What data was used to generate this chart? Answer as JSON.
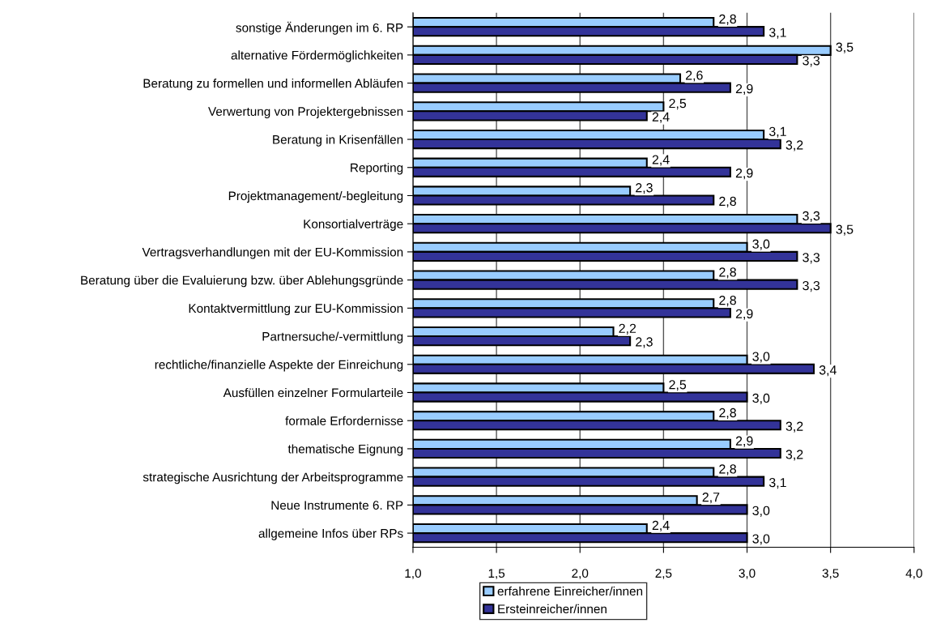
{
  "chart_data": {
    "type": "bar",
    "orientation": "horizontal",
    "categories": [
      "sonstige Änderungen im 6. RP",
      "alternative Fördermöglichkeiten",
      "Beratung zu formellen und informellen Abläufen",
      "Verwertung von Projektergebnissen",
      "Beratung in Krisenfällen",
      "Reporting",
      "Projektmanagement/-begleitung",
      "Konsortialverträge",
      "Vertragsverhandlungen mit der EU-Kommission",
      "Beratung über die Evaluierung bzw. über Ablehungsgründe",
      "Kontaktvermittlung zur EU-Kommission",
      "Partnersuche/-vermittlung",
      "rechtliche/finanzielle Aspekte der Einreichung",
      "Ausfüllen einzelner Formularteile",
      "formale Erfordernisse",
      "thematische Eignung",
      "strategische Ausrichtung der Arbeitsprogramme",
      "Neue Instrumente 6. RP",
      "allgemeine Infos über RPs"
    ],
    "series": [
      {
        "name": "erfahrene Einreicher/innen",
        "color": "#99ccff",
        "values": [
          2.8,
          3.5,
          2.6,
          2.5,
          3.1,
          2.4,
          2.3,
          3.3,
          3.0,
          2.8,
          2.8,
          2.2,
          3.0,
          2.5,
          2.8,
          2.9,
          2.8,
          2.7,
          2.4
        ],
        "value_labels": [
          "2,8",
          "3,5",
          "2,6",
          "2,5",
          "3,1",
          "2,4",
          "2,3",
          "3,3",
          "3,0",
          "2,8",
          "2,8",
          "2,2",
          "3,0",
          "2,5",
          "2,8",
          "2,9",
          "2,8",
          "2,7",
          "2,4"
        ]
      },
      {
        "name": "Ersteinreicher/innen",
        "color": "#333399",
        "values": [
          3.1,
          3.3,
          2.9,
          2.4,
          3.2,
          2.9,
          2.8,
          3.5,
          3.3,
          3.3,
          2.9,
          2.3,
          3.4,
          3.0,
          3.2,
          3.2,
          3.1,
          3.0,
          3.0
        ],
        "value_labels": [
          "3,1",
          "3,3",
          "2,9",
          "2,4",
          "3,2",
          "2,9",
          "2,8",
          "3,5",
          "3,3",
          "3,3",
          "2,9",
          "2,3",
          "3,4",
          "3,0",
          "3,2",
          "3,2",
          "3,1",
          "3,0",
          "3,0"
        ]
      }
    ],
    "xlim": [
      1.0,
      4.0
    ],
    "xticks": [
      {
        "value": 1.0,
        "label": "1,0"
      },
      {
        "value": 1.5,
        "label": "1,5"
      },
      {
        "value": 2.0,
        "label": "2,0"
      },
      {
        "value": 2.5,
        "label": "2,5"
      },
      {
        "value": 3.0,
        "label": "3,0"
      },
      {
        "value": 3.5,
        "label": "3,5"
      },
      {
        "value": 4.0,
        "label": "4,0"
      }
    ],
    "grid": "x",
    "legend": "bottom"
  }
}
